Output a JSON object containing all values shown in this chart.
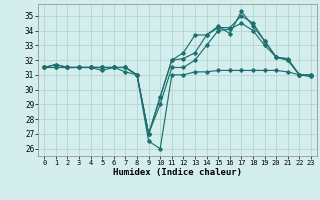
{
  "xlabel": "Humidex (Indice chaleur)",
  "xlim": [
    -0.5,
    23.5
  ],
  "ylim": [
    25.5,
    35.8
  ],
  "yticks": [
    26,
    27,
    28,
    29,
    30,
    31,
    32,
    33,
    34,
    35
  ],
  "xticks": [
    0,
    1,
    2,
    3,
    4,
    5,
    6,
    7,
    8,
    9,
    10,
    11,
    12,
    13,
    14,
    15,
    16,
    17,
    18,
    19,
    20,
    21,
    22,
    23
  ],
  "bg_color": "#d4eeee",
  "grid_color": "#b8d8d8",
  "line_color": "#1e7070",
  "series": [
    [
      31.5,
      31.7,
      31.5,
      31.5,
      31.5,
      31.3,
      31.5,
      31.5,
      31.0,
      27.0,
      29.5,
      32.0,
      32.5,
      33.7,
      33.7,
      34.3,
      33.8,
      35.3,
      34.3,
      33.3,
      32.2,
      32.1,
      31.0,
      31.0
    ],
    [
      31.5,
      31.7,
      31.5,
      31.5,
      31.5,
      31.5,
      31.5,
      31.2,
      31.0,
      27.0,
      29.5,
      32.0,
      32.1,
      32.5,
      33.7,
      34.2,
      34.2,
      35.0,
      34.5,
      33.3,
      32.2,
      32.0,
      31.0,
      31.0
    ],
    [
      31.5,
      31.5,
      31.5,
      31.5,
      31.5,
      31.5,
      31.5,
      31.5,
      31.0,
      27.0,
      29.0,
      31.5,
      31.5,
      32.0,
      33.0,
      34.0,
      34.1,
      34.5,
      34.0,
      33.0,
      32.2,
      32.0,
      31.0,
      30.9
    ],
    [
      31.5,
      31.5,
      31.5,
      31.5,
      31.5,
      31.5,
      31.5,
      31.5,
      31.0,
      26.5,
      26.0,
      31.0,
      31.0,
      31.2,
      31.2,
      31.3,
      31.3,
      31.3,
      31.3,
      31.3,
      31.3,
      31.2,
      31.0,
      30.9
    ]
  ]
}
